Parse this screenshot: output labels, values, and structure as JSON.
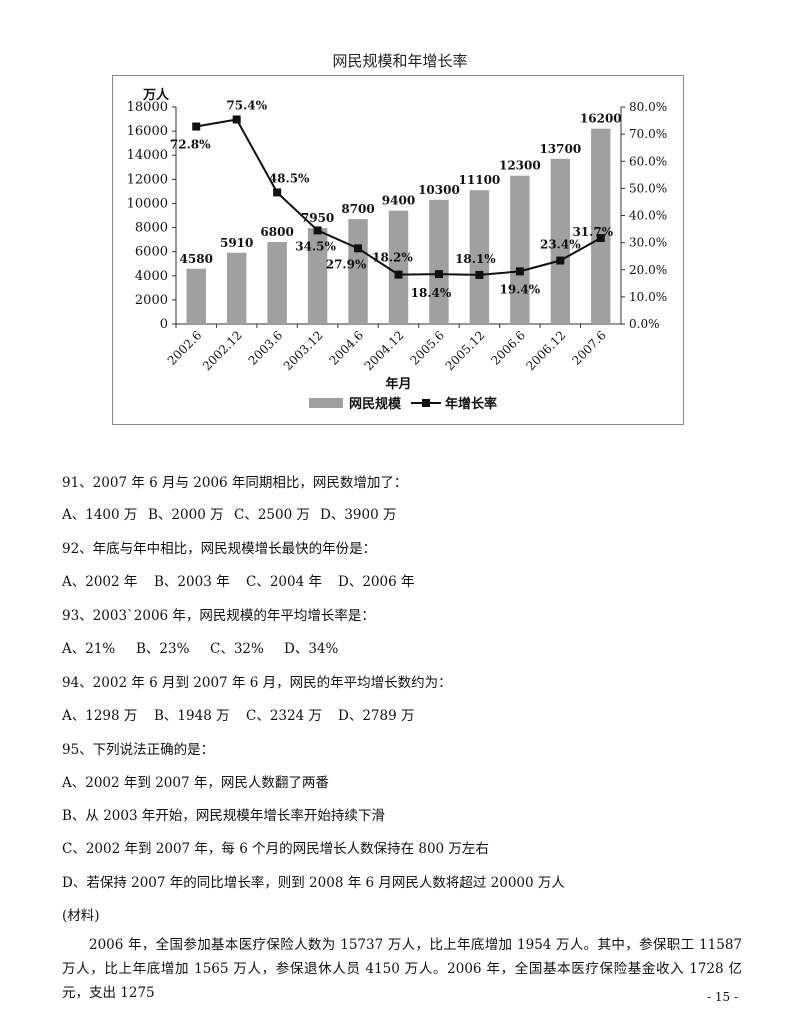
{
  "chart_data": {
    "type": "bar",
    "title": "网民规模和年增长率",
    "categories": [
      "2002.6",
      "2002.12",
      "2003.6",
      "2003.12",
      "2004.6",
      "2004.12",
      "2005.6",
      "2005.12",
      "2006.6",
      "2006.12",
      "2007.6"
    ],
    "series": [
      {
        "name": "网民规模",
        "type": "bar",
        "axis": "left",
        "values": [
          4580,
          5910,
          6800,
          7950,
          8700,
          9400,
          10300,
          11100,
          12300,
          13700,
          16200
        ],
        "labels": [
          "4580",
          "5910",
          "6800",
          "7950",
          "8700",
          "9400",
          "10300",
          "11100",
          "12300",
          "13700",
          "16200"
        ],
        "color": "#a0a0a0"
      },
      {
        "name": "年增长率",
        "type": "line",
        "axis": "right",
        "values": [
          72.8,
          75.4,
          48.5,
          34.5,
          27.9,
          18.2,
          18.4,
          18.1,
          19.4,
          23.4,
          31.7
        ],
        "labels": [
          "72.8%",
          "75.4%",
          "48.5%",
          "34.5%",
          "27.9%",
          "18.2%",
          "18.4%",
          "18.1%",
          "19.4%",
          "23.4%",
          "31.7%"
        ],
        "color": "#111111"
      }
    ],
    "ylabel": "万人",
    "xlabel": "年月",
    "ylim": [
      0,
      18000
    ],
    "y2lim": [
      0,
      80
    ],
    "yticks": [
      "0",
      "2000",
      "4000",
      "6000",
      "8000",
      "10000",
      "12000",
      "14000",
      "16000",
      "18000"
    ],
    "y2ticks": [
      "0.0%",
      "10.0%",
      "20.0%",
      "30.0%",
      "40.0%",
      "50.0%",
      "60.0%",
      "70.0%",
      "80.0%"
    ],
    "grid": false,
    "legend_position": "bottom"
  },
  "questions": [
    {
      "stem": "91、2007 年 6 月与 2006 年同期相比，网民数增加了：",
      "options": [
        "A、1400 万",
        "B、2000 万",
        "C、2500 万",
        "D、3900 万"
      ]
    },
    {
      "stem": "92、年底与年中相比，网民规模增长最快的年份是：",
      "options": [
        "A、2002 年",
        "B、2003 年",
        "C、2004 年",
        "D、2006 年"
      ]
    },
    {
      "stem": "93、2003`2006 年，网民规模的年平均增长率是：",
      "options": [
        "A、21%",
        "B、23%",
        "C、32%",
        "D、34%"
      ]
    },
    {
      "stem": "94、2002 年 6 月到 2007 年 6 月，网民的年平均增长数约为：",
      "options": [
        "A、1298 万",
        "B、1948 万",
        "C、2324 万",
        "D、2789 万"
      ]
    },
    {
      "stem": "95、下列说法正确的是：",
      "options": [
        "A、2002 年到 2007 年，网民人数翻了两番",
        "B、从 2003 年开始，网民规模年增长率开始持续下滑",
        "C、2002 年到 2007 年，每 6 个月的网民增长人数保持在 800 万左右",
        "D、若保持 2007 年的同比增长率，则到 2008 年 6 月网民人数将超过 20000 万人"
      ]
    }
  ],
  "material_label": "(材料)",
  "paragraph": "2006 年，全国参加基本医疗保险人数为 15737 万人，比上年底增加 1954 万人。其中，参保职工 11587 万人，比上年底增加 1565 万人，参保退休人员 4150 万人。2006 年，全国基本医疗保险基金收入 1728 亿元，支出 1275",
  "page_number": "- 15 -"
}
